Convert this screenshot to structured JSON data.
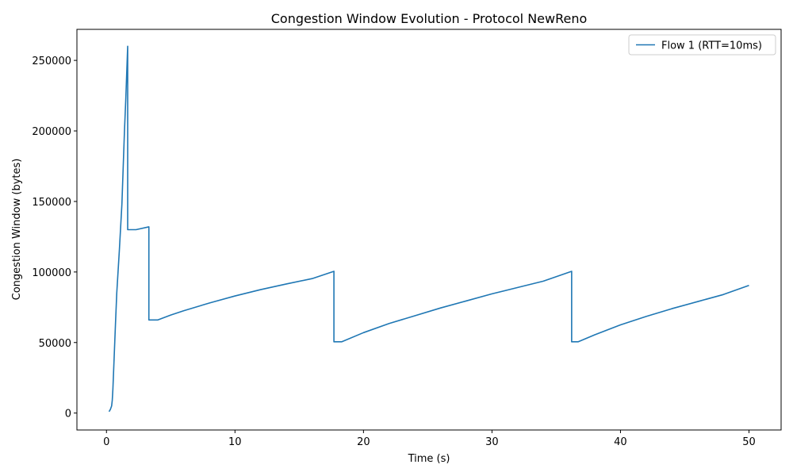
{
  "chart_data": {
    "type": "line",
    "title": "Congestion Window Evolution - Protocol NewReno",
    "xlabel": "Time (s)",
    "ylabel": "Congestion Window (bytes)",
    "xlim": [
      -2.3,
      52.5
    ],
    "ylim": [
      -12000,
      272000
    ],
    "xticks": [
      0,
      10,
      20,
      30,
      40,
      50
    ],
    "yticks": [
      0,
      50000,
      100000,
      150000,
      200000,
      250000
    ],
    "grid": false,
    "legend_position": "top-right",
    "colors": {
      "series": "#1f77b4"
    },
    "series": [
      {
        "name": "Flow 1 (RTT=10ms)",
        "points": [
          [
            0.2,
            1000
          ],
          [
            0.3,
            2500
          ],
          [
            0.4,
            5000
          ],
          [
            0.45,
            9000
          ],
          [
            0.5,
            17000
          ],
          [
            0.6,
            40000
          ],
          [
            0.7,
            63000
          ],
          [
            0.8,
            85000
          ],
          [
            1.0,
            115000
          ],
          [
            1.2,
            148000
          ],
          [
            1.4,
            200000
          ],
          [
            1.5,
            222000
          ],
          [
            1.65,
            260000
          ],
          [
            1.65,
            130000
          ],
          [
            2.3,
            130000
          ],
          [
            3.3,
            132000
          ],
          [
            3.3,
            66000
          ],
          [
            4.0,
            66000
          ],
          [
            5.0,
            69500
          ],
          [
            6.0,
            72500
          ],
          [
            8.0,
            78000
          ],
          [
            10.0,
            83000
          ],
          [
            12.0,
            87500
          ],
          [
            14.0,
            91500
          ],
          [
            16.0,
            95300
          ],
          [
            17.7,
            100500
          ],
          [
            17.7,
            50500
          ],
          [
            18.3,
            50500
          ],
          [
            20.0,
            57000
          ],
          [
            22.0,
            63500
          ],
          [
            24.0,
            69000
          ],
          [
            26.0,
            74500
          ],
          [
            28.0,
            79500
          ],
          [
            30.0,
            84500
          ],
          [
            32.0,
            89000
          ],
          [
            34.0,
            93500
          ],
          [
            36.2,
            100500
          ],
          [
            36.2,
            50500
          ],
          [
            36.7,
            50500
          ],
          [
            38.0,
            55500
          ],
          [
            40.0,
            62500
          ],
          [
            42.0,
            68500
          ],
          [
            44.0,
            74000
          ],
          [
            46.0,
            79000
          ],
          [
            48.0,
            84000
          ],
          [
            50.0,
            90500
          ]
        ]
      }
    ]
  }
}
